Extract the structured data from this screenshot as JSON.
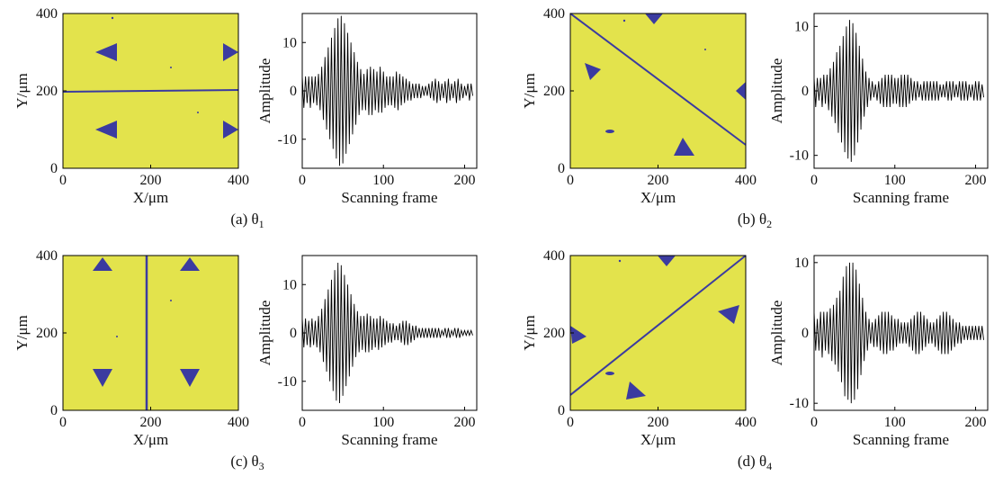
{
  "chart_data": [
    {
      "type": "image",
      "xlim": [
        0,
        400
      ],
      "ylim": [
        0,
        400
      ],
      "xticks": [
        0,
        200,
        400
      ],
      "yticks": [
        0,
        200,
        400
      ],
      "xlabel": "X/μm",
      "ylabel": "Y/μm",
      "caption": "(a) θ",
      "caption_subscript": "1"
    },
    {
      "type": "line",
      "color": "#000000",
      "xlabel": "Scanning frame",
      "ylabel": "Amplitude",
      "xlim": [
        0,
        215
      ],
      "ylim": [
        -16,
        16
      ],
      "xticks": [
        0,
        100,
        200
      ],
      "yticks": [
        -10,
        0,
        10
      ],
      "x": [
        0,
        2,
        4,
        6,
        8,
        10,
        12,
        14,
        16,
        18,
        20,
        22,
        24,
        26,
        28,
        30,
        32,
        34,
        36,
        38,
        40,
        42,
        44,
        46,
        48,
        50,
        52,
        54,
        56,
        58,
        60,
        62,
        64,
        66,
        68,
        70,
        72,
        74,
        76,
        78,
        80,
        82,
        84,
        86,
        88,
        90,
        92,
        94,
        96,
        98,
        100,
        102,
        104,
        106,
        108,
        110,
        112,
        114,
        116,
        118,
        120,
        122,
        124,
        126,
        128,
        130,
        132,
        134,
        136,
        138,
        140,
        142,
        144,
        146,
        148,
        150,
        152,
        154,
        156,
        158,
        160,
        162,
        164,
        166,
        168,
        170,
        172,
        174,
        176,
        178,
        180,
        182,
        184,
        186,
        188,
        190,
        192,
        194,
        196,
        198,
        200,
        202,
        204,
        206,
        208,
        210
      ],
      "values": [
        3,
        -3.5,
        3,
        -2.5,
        3,
        -3.5,
        3,
        -2.5,
        3,
        -3,
        3.5,
        -4,
        5,
        -6,
        7,
        -8,
        9,
        -10,
        11,
        -12,
        13,
        -14,
        15,
        -15.5,
        15.5,
        -15,
        14,
        -13,
        12,
        -11,
        10,
        -9,
        8,
        -7,
        6,
        -5,
        4.5,
        -4,
        3.5,
        -4,
        4.5,
        -5,
        5,
        -5,
        4.5,
        -4,
        4,
        -4.5,
        5,
        -4.5,
        4,
        -3.5,
        3,
        -3,
        3,
        -3,
        3,
        -3.5,
        4,
        -4,
        3.5,
        -3,
        3,
        -2.5,
        2.5,
        -2,
        2,
        -2,
        1.5,
        -1.5,
        1.5,
        -1.5,
        1.5,
        -1.5,
        1,
        -1,
        1,
        -1,
        1.5,
        -1.5,
        2,
        -2,
        2.5,
        -2.5,
        2,
        -2,
        1.5,
        -1.5,
        2,
        -2.5,
        2.5,
        -2,
        1.5,
        -1.5,
        2,
        -2.5,
        2.5,
        -2,
        1.5,
        -1.5,
        1,
        -1,
        1.5,
        -2,
        1.5,
        -1
      ]
    },
    {
      "type": "image",
      "xlim": [
        0,
        400
      ],
      "ylim": [
        0,
        400
      ],
      "xticks": [
        0,
        200,
        400
      ],
      "yticks": [
        0,
        200,
        400
      ],
      "xlabel": "X/μm",
      "ylabel": "Y/μm",
      "caption": "(b) θ",
      "caption_subscript": "2"
    },
    {
      "type": "line",
      "color": "#000000",
      "xlabel": "Scanning frame",
      "ylabel": "Amplitude",
      "xlim": [
        0,
        215
      ],
      "ylim": [
        -12,
        12
      ],
      "xticks": [
        0,
        100,
        200
      ],
      "yticks": [
        -10,
        0,
        10
      ],
      "x": [
        0,
        2,
        4,
        6,
        8,
        10,
        12,
        14,
        16,
        18,
        20,
        22,
        24,
        26,
        28,
        30,
        32,
        34,
        36,
        38,
        40,
        42,
        44,
        46,
        48,
        50,
        52,
        54,
        56,
        58,
        60,
        62,
        64,
        66,
        68,
        70,
        72,
        74,
        76,
        78,
        80,
        82,
        84,
        86,
        88,
        90,
        92,
        94,
        96,
        98,
        100,
        102,
        104,
        106,
        108,
        110,
        112,
        114,
        116,
        118,
        120,
        122,
        124,
        126,
        128,
        130,
        132,
        134,
        136,
        138,
        140,
        142,
        144,
        146,
        148,
        150,
        152,
        154,
        156,
        158,
        160,
        162,
        164,
        166,
        168,
        170,
        172,
        174,
        176,
        178,
        180,
        182,
        184,
        186,
        188,
        190,
        192,
        194,
        196,
        198,
        200,
        202,
        204,
        206,
        208,
        210
      ],
      "values": [
        2,
        -2.5,
        2,
        -1.5,
        2,
        -2.5,
        2.5,
        -2,
        2.5,
        -3,
        3.5,
        -4,
        4.5,
        -5,
        6,
        -6.5,
        7,
        -8,
        8.5,
        -9.5,
        10,
        -10.5,
        11,
        -11,
        10.5,
        -10,
        9,
        -8,
        7,
        -6,
        5,
        -4,
        3,
        -2.5,
        2,
        -1.5,
        1.5,
        -1,
        1,
        -1.5,
        1.5,
        -2,
        2,
        -2.5,
        2.5,
        -2.5,
        2.5,
        -2.5,
        2.5,
        -2,
        2,
        -2,
        2,
        -2.5,
        2.5,
        -2.5,
        2.5,
        -2.5,
        2.5,
        -2,
        2,
        -1.5,
        1.5,
        -1.5,
        1.5,
        -1,
        1,
        -1.5,
        1.5,
        -1.5,
        1.5,
        -1.5,
        1.5,
        -1.5,
        1.5,
        -1.5,
        1.5,
        -1.5,
        1,
        -1,
        1,
        -1,
        1.5,
        -1.5,
        1.5,
        -1.5,
        1.5,
        -1,
        1,
        -1,
        1.5,
        -1.5,
        1.5,
        -1.5,
        1.5,
        -1.5,
        1,
        -1,
        1,
        -1.5,
        1.5,
        -1.5,
        1.5,
        -1.5,
        1,
        -1
      ]
    },
    {
      "type": "image",
      "xlim": [
        0,
        400
      ],
      "ylim": [
        0,
        400
      ],
      "xticks": [
        0,
        200,
        400
      ],
      "yticks": [
        0,
        200,
        400
      ],
      "xlabel": "X/μm",
      "ylabel": "Y/μm",
      "caption": "(c) θ",
      "caption_subscript": "3"
    },
    {
      "type": "line",
      "color": "#000000",
      "xlabel": "Scanning frame",
      "ylabel": "Amplitude",
      "xlim": [
        0,
        215
      ],
      "ylim": [
        -16,
        16
      ],
      "xticks": [
        0,
        100,
        200
      ],
      "yticks": [
        -10,
        0,
        10
      ],
      "x": [
        0,
        2,
        4,
        6,
        8,
        10,
        12,
        14,
        16,
        18,
        20,
        22,
        24,
        26,
        28,
        30,
        32,
        34,
        36,
        38,
        40,
        42,
        44,
        46,
        48,
        50,
        52,
        54,
        56,
        58,
        60,
        62,
        64,
        66,
        68,
        70,
        72,
        74,
        76,
        78,
        80,
        82,
        84,
        86,
        88,
        90,
        92,
        94,
        96,
        98,
        100,
        102,
        104,
        106,
        108,
        110,
        112,
        114,
        116,
        118,
        120,
        122,
        124,
        126,
        128,
        130,
        132,
        134,
        136,
        138,
        140,
        142,
        144,
        146,
        148,
        150,
        152,
        154,
        156,
        158,
        160,
        162,
        164,
        166,
        168,
        170,
        172,
        174,
        176,
        178,
        180,
        182,
        184,
        186,
        188,
        190,
        192,
        194,
        196,
        198,
        200,
        202,
        204,
        206,
        208,
        210
      ],
      "values": [
        3,
        -3,
        3,
        -2.5,
        2.5,
        -3,
        3,
        -2.5,
        2.5,
        -3,
        3.5,
        -4,
        5,
        -6,
        7,
        -8,
        9,
        -10,
        11,
        -12,
        13,
        -14,
        14.5,
        -14.5,
        14,
        -13,
        12,
        -11,
        10,
        -9,
        8,
        -7,
        6,
        -5,
        4.5,
        -4,
        3.5,
        -3.5,
        3.5,
        -4,
        4,
        -4,
        3.5,
        -3.5,
        3,
        -3,
        3,
        -3.5,
        3.5,
        -3,
        3,
        -2.5,
        2.5,
        -2,
        2,
        -2,
        2,
        -1.5,
        1.5,
        -1.5,
        2,
        -2,
        2.5,
        -2.5,
        2.5,
        -2.5,
        2,
        -2,
        1.5,
        -1.5,
        1.5,
        -1,
        1,
        -1,
        1,
        -1,
        1,
        -1,
        1,
        -1,
        1,
        -1,
        1,
        -1,
        1,
        -1,
        0.5,
        -0.5,
        1,
        -1,
        1,
        -1,
        0.5,
        -0.5,
        1,
        -1,
        1,
        -1,
        0.5,
        -0.5,
        0.5,
        -0.5,
        0.5,
        -0.5,
        0.5,
        -0.5
      ]
    },
    {
      "type": "image",
      "xlim": [
        0,
        400
      ],
      "ylim": [
        0,
        400
      ],
      "xticks": [
        0,
        200,
        400
      ],
      "yticks": [
        0,
        200,
        400
      ],
      "xlabel": "X/μm",
      "ylabel": "Y/μm",
      "caption": "(d) θ",
      "caption_subscript": "4"
    },
    {
      "type": "line",
      "color": "#000000",
      "xlabel": "Scanning frame",
      "ylabel": "Amplitude",
      "xlim": [
        0,
        215
      ],
      "ylim": [
        -11,
        11
      ],
      "xticks": [
        0,
        100,
        200
      ],
      "yticks": [
        -10,
        0,
        10
      ],
      "x": [
        0,
        2,
        4,
        6,
        8,
        10,
        12,
        14,
        16,
        18,
        20,
        22,
        24,
        26,
        28,
        30,
        32,
        34,
        36,
        38,
        40,
        42,
        44,
        46,
        48,
        50,
        52,
        54,
        56,
        58,
        60,
        62,
        64,
        66,
        68,
        70,
        72,
        74,
        76,
        78,
        80,
        82,
        84,
        86,
        88,
        90,
        92,
        94,
        96,
        98,
        100,
        102,
        104,
        106,
        108,
        110,
        112,
        114,
        116,
        118,
        120,
        122,
        124,
        126,
        128,
        130,
        132,
        134,
        136,
        138,
        140,
        142,
        144,
        146,
        148,
        150,
        152,
        154,
        156,
        158,
        160,
        162,
        164,
        166,
        168,
        170,
        172,
        174,
        176,
        178,
        180,
        182,
        184,
        186,
        188,
        190,
        192,
        194,
        196,
        198,
        200,
        202,
        204,
        206,
        208,
        210
      ],
      "values": [
        3,
        -2.5,
        2,
        -2.5,
        3,
        -3.5,
        3,
        -2.5,
        3,
        -3,
        3.5,
        -4,
        4,
        -4.5,
        5,
        -5.5,
        6,
        -7,
        8,
        -9,
        9.5,
        -9.5,
        10,
        -10,
        10,
        -9.5,
        9,
        -8,
        7,
        -6,
        5,
        -4,
        3,
        -2.5,
        2,
        -1.5,
        1.5,
        -2,
        2,
        -2,
        2.5,
        -2.5,
        3,
        -3,
        3,
        -3,
        3,
        -2.5,
        2.5,
        -2.5,
        2,
        -2,
        2,
        -1.5,
        1.5,
        -1.5,
        1.5,
        -1.5,
        1.5,
        -2,
        2,
        -2.5,
        2.5,
        -3,
        3,
        -3,
        3,
        -2.5,
        2.5,
        -2,
        2,
        -1.5,
        1.5,
        -1.5,
        1.5,
        -2,
        2,
        -2.5,
        2.5,
        -3,
        3,
        -3,
        3,
        -3,
        2.5,
        -2.5,
        2,
        -2,
        1.5,
        -1.5,
        1.5,
        -1.5,
        1,
        -1,
        1,
        -1,
        1,
        -1,
        1,
        -1,
        1,
        -1,
        1,
        -1,
        1,
        -1
      ]
    }
  ]
}
